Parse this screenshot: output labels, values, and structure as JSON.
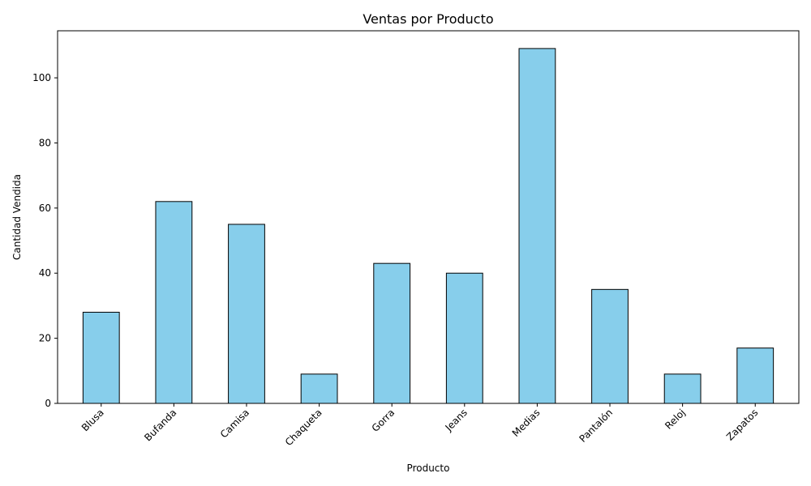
{
  "chart_data": {
    "type": "bar",
    "title": "Ventas por Producto",
    "xlabel": "Producto",
    "ylabel": "Cantidad Vendida",
    "categories": [
      "Blusa",
      "Bufanda",
      "Camisa",
      "Chaqueta",
      "Gorra",
      "Jeans",
      "Medias",
      "Pantalón",
      "Reloj",
      "Zapatos"
    ],
    "values": [
      28,
      62,
      55,
      9,
      43,
      40,
      109,
      35,
      9,
      17
    ],
    "ylim": [
      0,
      114.45
    ],
    "yticks": [
      0,
      20,
      40,
      60,
      80,
      100
    ],
    "bar_color": "#87ceeb",
    "edge_color": "#000000",
    "grid": false,
    "legend": "none"
  }
}
